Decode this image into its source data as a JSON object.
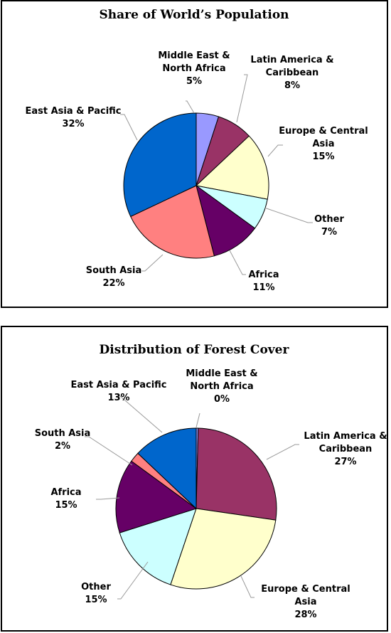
{
  "chart_data": [
    {
      "type": "pie",
      "title": "Share of World’s Population",
      "start_angle_deg": 0,
      "slices": [
        {
          "name": "Middle East & North Africa",
          "label_lines": [
            "Middle East &",
            "North Africa"
          ],
          "pct_label": "5%",
          "value": 5,
          "color": "#9999ff"
        },
        {
          "name": "Latin America & Caribbean",
          "label_lines": [
            "Latin America &",
            "Caribbean"
          ],
          "pct_label": "8%",
          "value": 8,
          "color": "#993366"
        },
        {
          "name": "Europe & Central Asia",
          "label_lines": [
            "Europe & Central",
            "Asia"
          ],
          "pct_label": "15%",
          "value": 15,
          "color": "#ffffcc"
        },
        {
          "name": "Other",
          "label_lines": [
            "Other"
          ],
          "pct_label": "7%",
          "value": 7,
          "color": "#ccffff"
        },
        {
          "name": "Africa",
          "label_lines": [
            "Africa"
          ],
          "pct_label": "11%",
          "value": 11,
          "color": "#660066"
        },
        {
          "name": "South Asia",
          "label_lines": [
            "South Asia"
          ],
          "pct_label": "22%",
          "value": 22,
          "color": "#ff8080"
        },
        {
          "name": "East Asia & Pacific",
          "label_lines": [
            "East Asia & Pacific"
          ],
          "pct_label": "32%",
          "value": 32,
          "color": "#0066cc"
        }
      ]
    },
    {
      "type": "pie",
      "title": "Distribution of Forest Cover",
      "start_angle_deg": 0,
      "slices": [
        {
          "name": "Middle East & North Africa",
          "label_lines": [
            "Middle East &",
            "North Africa"
          ],
          "pct_label": "0%",
          "value": 0.4,
          "color": "#9999ff"
        },
        {
          "name": "Latin America & Caribbean",
          "label_lines": [
            "Latin America &",
            "Caribbean"
          ],
          "pct_label": "27%",
          "value": 27,
          "color": "#993366"
        },
        {
          "name": "Europe & Central Asia",
          "label_lines": [
            "Europe & Central",
            "Asia"
          ],
          "pct_label": "28%",
          "value": 28,
          "color": "#ffffcc"
        },
        {
          "name": "Other",
          "label_lines": [
            "Other"
          ],
          "pct_label": "15%",
          "value": 15,
          "color": "#ccffff"
        },
        {
          "name": "Africa",
          "label_lines": [
            "Africa"
          ],
          "pct_label": "15%",
          "value": 15,
          "color": "#660066"
        },
        {
          "name": "South Asia",
          "label_lines": [
            "South Asia"
          ],
          "pct_label": "2%",
          "value": 2,
          "color": "#ff8080"
        },
        {
          "name": "East Asia & Pacific",
          "label_lines": [
            "East Asia & Pacific"
          ],
          "pct_label": "13%",
          "value": 13,
          "color": "#0066cc"
        }
      ]
    }
  ]
}
